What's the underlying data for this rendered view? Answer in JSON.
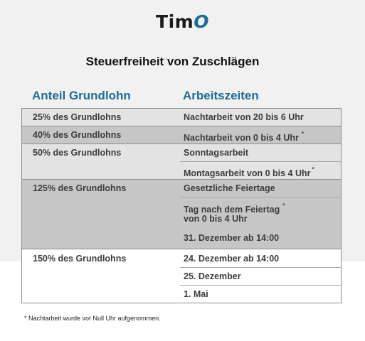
{
  "logo": {
    "text_main": "Tim",
    "text_accent": "O"
  },
  "title": "Steuerfreiheit von Zuschlägen",
  "columns": {
    "left": "Anteil Grundlohn",
    "right": "Arbeitszeiten"
  },
  "groups": [
    {
      "rate": "25% des Grundlohns",
      "times": [
        "Nachtarbeit von 20 bis 6 Uhr"
      ]
    },
    {
      "rate": "40% des Grundlohns",
      "times": [
        "Nachtarbeit von 0 bis 4 Uhr"
      ]
    },
    {
      "rate": "50% des Grundlohns",
      "times": [
        "Sonntagsarbeit",
        "Montagsarbeit von 0 bis 4 Uhr"
      ]
    },
    {
      "rate": "125% des Grundlohns",
      "times": [
        "Gesetzliche Feiertage",
        "Tag nach dem Feiertag",
        "von 0 bis 4 Uhr",
        "31. Dezember ab 14:00"
      ]
    },
    {
      "rate": "150% des Grundlohns",
      "times": [
        "24. Dezember ab 14:00",
        "25. Dezember",
        "1. Mai"
      ]
    }
  ],
  "asterisk": "*",
  "footnote": "* Nachtarbeit wurde vor Null Uhr aufgenommen."
}
